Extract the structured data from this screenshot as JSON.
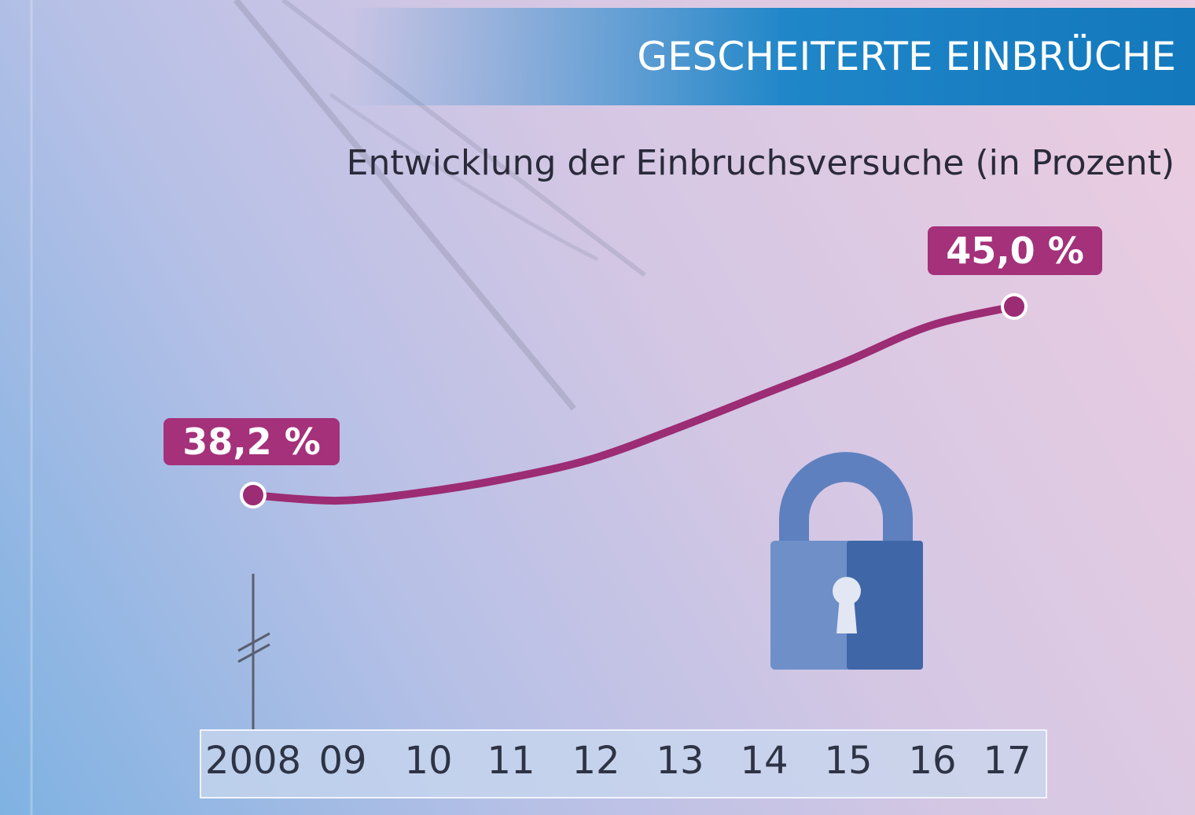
{
  "header": {
    "title": "GESCHEITERTE EINBRÜCHE",
    "subtitle": "Entwicklung der Einbruchsversuche (in Prozent)"
  },
  "colors": {
    "line": "#9c2c74",
    "label_bg": "#a4317a",
    "banner": "#1f86c8",
    "lock_light": "#6f8fc9",
    "lock_dark": "#3f67a8"
  },
  "icon": "padlock-icon",
  "chart_data": {
    "type": "line",
    "title": "GESCHEITERTE EINBRÜCHE",
    "subtitle": "Entwicklung der Einbruchsversuche (in Prozent)",
    "categories": [
      "2008",
      "09",
      "10",
      "11",
      "12",
      "13",
      "14",
      "15",
      "16",
      "17"
    ],
    "series": [
      {
        "values": [
          38.2,
          38.0,
          38.3,
          38.8,
          39.5,
          40.6,
          41.8,
          43.0,
          44.3,
          45.0
        ]
      }
    ],
    "data_labels": [
      {
        "index": 0,
        "text": "38,2 %"
      },
      {
        "index": 9,
        "text": "45,0 %"
      }
    ],
    "ylim": [
      34,
      46
    ],
    "y_axis_break": true,
    "grid": false,
    "legend": "none"
  }
}
